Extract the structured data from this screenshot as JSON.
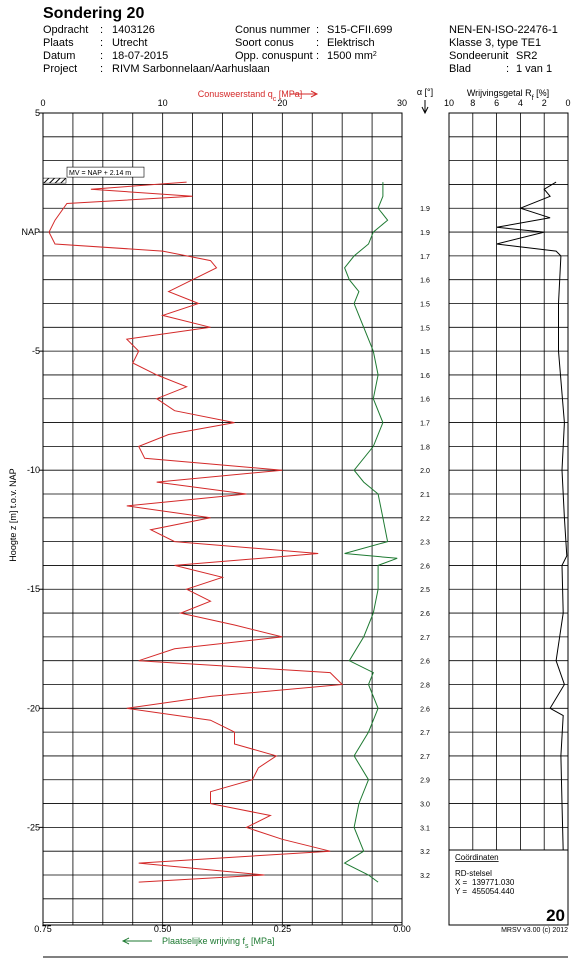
{
  "header": {
    "title": "Sondering 20",
    "separator": ":",
    "col1": [
      {
        "label": "Opdracht",
        "value": "1403126"
      },
      {
        "label": "Plaats",
        "value": "Utrecht"
      },
      {
        "label": "Datum",
        "value": "18-07-2015"
      },
      {
        "label": "Project",
        "value": "RIVM Sarbonnelaan/Aarhuslaan"
      }
    ],
    "col2": [
      {
        "label": "Conus nummer",
        "value": "S15-CFII.699"
      },
      {
        "label": "Soort conus",
        "value": "Elektrisch"
      },
      {
        "label": "Opp. conuspunt",
        "value": "1500 mm",
        "sup": "2"
      }
    ],
    "col3": [
      {
        "text": "NEN-EN-ISO-22476-1"
      },
      {
        "text": "Klasse 3, type TE1"
      },
      {
        "label": "Sondeerunit",
        "value": "SR2"
      },
      {
        "label": "Blad",
        "value": "1 van 1"
      }
    ]
  },
  "chart_data": {
    "type": "cpt",
    "ylabel": "Hoogte z [m] t.o.v. NAP",
    "ylim": [
      5,
      -29.1
    ],
    "yticks": [
      5,
      {
        "value": 0,
        "label": "NAP"
      },
      -5,
      -10,
      -15,
      -20,
      -25
    ],
    "ygrid": [
      5,
      4,
      3,
      2,
      1,
      0,
      -1,
      -2,
      -3,
      -4,
      -5,
      -6,
      -7,
      -8,
      -9,
      -10,
      -11,
      -12,
      -13,
      -14,
      -15,
      -16,
      -17,
      -18,
      -19,
      -20,
      -21,
      -22,
      -23,
      -24,
      -25,
      -26,
      -27,
      -28,
      -29
    ],
    "annotation": "MV = NAP + 2.14 m",
    "surface_level": 2.14,
    "qc": {
      "label": [
        "Conusweerstand q",
        "c",
        " [MPa]"
      ],
      "color": "#d42a2a",
      "xlim": [
        0,
        30
      ],
      "xticks": [
        0,
        10,
        20,
        30
      ],
      "xgrid": [
        0,
        2.5,
        5,
        7.5,
        10,
        12.5,
        15,
        17.5,
        20,
        22.5,
        25,
        27.5,
        30
      ],
      "depth": [
        2.1,
        1.8,
        1.5,
        1.2,
        0.5,
        0,
        -0.5,
        -0.8,
        -1.2,
        -1.5,
        -2,
        -2.5,
        -3,
        -3.5,
        -4,
        -4.5,
        -5,
        -5.5,
        -6,
        -6.5,
        -7,
        -7.5,
        -8,
        -8.5,
        -9,
        -9.5,
        -10,
        -10.5,
        -11,
        -11.5,
        -12,
        -12.5,
        -13,
        -13.5,
        -14,
        -14.5,
        -15,
        -15.5,
        -16,
        -16.5,
        -17,
        -17.5,
        -18,
        -18.5,
        -19,
        -19.5,
        -20,
        -20.5,
        -21,
        -21.5,
        -22,
        -22.5,
        -23,
        -23.5,
        -24,
        -24.5,
        -25,
        -25.5,
        -26,
        -26.5,
        -27,
        -27.3
      ],
      "values": [
        12,
        4,
        12.5,
        2,
        1,
        0.5,
        1,
        10,
        14,
        14.5,
        12.5,
        10.5,
        13,
        10,
        14,
        7,
        8,
        7.5,
        9.5,
        12,
        9.5,
        11,
        16,
        10.5,
        8,
        8.5,
        20,
        9.5,
        17,
        7,
        14,
        9,
        11,
        23,
        11,
        15,
        12,
        14,
        11.5,
        16,
        20,
        11,
        8,
        24,
        25,
        14,
        7,
        14,
        16,
        16,
        19.5,
        18,
        17.5,
        14,
        14,
        19,
        17,
        20,
        24,
        8,
        18.5,
        8
      ]
    },
    "fs": {
      "label": [
        "Plaatselijke wrijving f",
        "s",
        " [MPa]"
      ],
      "color": "#1e7a32",
      "xlim": [
        0.75,
        0
      ],
      "xticks": [
        {
          "value": 0.75,
          "label": "0.75"
        },
        {
          "value": 0.5,
          "label": "0.50"
        },
        {
          "value": 0.25,
          "label": "0.25"
        },
        {
          "value": 0,
          "label": "0.00"
        }
      ],
      "depth": [
        2.1,
        1.5,
        1,
        0.5,
        0,
        -0.5,
        -1,
        -1.5,
        -2,
        -2.5,
        -3,
        -3.5,
        -4,
        -4.5,
        -5,
        -6,
        -7,
        -8,
        -9,
        -10,
        -10.5,
        -11,
        -12,
        -13,
        -13.5,
        -13.7,
        -14,
        -15,
        -16,
        -17,
        -18,
        -18.5,
        -19,
        -20,
        -21,
        -22,
        -23,
        -24,
        -25,
        -26,
        -26.5,
        -27,
        -27.3
      ],
      "values": [
        0.04,
        0.04,
        0.05,
        0.03,
        0.06,
        0.07,
        0.1,
        0.12,
        0.11,
        0.09,
        0.1,
        0.09,
        0.08,
        0.07,
        0.06,
        0.05,
        0.06,
        0.04,
        0.06,
        0.1,
        0.08,
        0.05,
        0.04,
        0.03,
        0.12,
        0.01,
        0.05,
        0.05,
        0.06,
        0.08,
        0.11,
        0.06,
        0.07,
        0.05,
        0.07,
        0.1,
        0.07,
        0.09,
        0.1,
        0.08,
        0.12,
        0.07,
        0.05
      ]
    },
    "rf": {
      "label": [
        "Wrijvingsgetal R",
        "f",
        " [%]"
      ],
      "color": "#000000",
      "xlim": [
        10,
        0
      ],
      "xticks": [
        10,
        8,
        6,
        4,
        2,
        0
      ],
      "depth": [
        2.1,
        1.8,
        1.5,
        1,
        0.6,
        0.2,
        0,
        -0.5,
        -0.8,
        -1,
        -3,
        -5,
        -8,
        -10,
        -12,
        -13.6,
        -14,
        -16,
        -18,
        -19,
        -20,
        -20.3,
        -22,
        -24,
        -26,
        -26.6,
        -27.3
      ],
      "values": [
        1,
        2,
        1.5,
        4,
        1.5,
        6,
        2,
        6,
        1,
        0.6,
        0.8,
        0.8,
        0.3,
        0.5,
        0.3,
        0.1,
        0.5,
        0.4,
        1,
        0.3,
        1.5,
        0.4,
        0.6,
        0.5,
        0.4,
        1,
        0.6
      ]
    },
    "alpha": {
      "label": "α [°]",
      "depth": [
        1,
        0,
        -1,
        -2,
        -3,
        -4,
        -5,
        -6,
        -7,
        -8,
        -9,
        -10,
        -11,
        -12,
        -13,
        -14,
        -15,
        -16,
        -17,
        -18,
        -19,
        -20,
        -21,
        -22,
        -23,
        -24,
        -25,
        -26,
        -27
      ],
      "values": [
        1.9,
        1.9,
        1.7,
        1.6,
        1.5,
        1.5,
        1.5,
        1.6,
        1.6,
        1.7,
        1.8,
        2,
        2.1,
        2.2,
        2.3,
        2.6,
        2.5,
        2.6,
        2.7,
        2.6,
        2.8,
        2.6,
        2.7,
        2.7,
        2.9,
        3,
        3.1,
        3.2,
        3.2
      ],
      "value_labels": [
        "1.9",
        "1.9",
        "1.7",
        "1.6",
        "1.5",
        "1.5",
        "1.5",
        "1.6",
        "1.6",
        "1.7",
        "1.8",
        "2.0",
        "2.1",
        "2.2",
        "2.3",
        "2.6",
        "2.5",
        "2.6",
        "2.7",
        "2.6",
        "2.8",
        "2.6",
        "2.7",
        "2.7",
        "2.9",
        "3.0",
        "3.1",
        "3.2",
        "3.2"
      ]
    }
  },
  "footer": {
    "coords_title": "Coördinaten",
    "system": "RD-stelsel",
    "x_label": "X =",
    "x": "139771.030",
    "y_label": "Y =",
    "y": "455054.440",
    "sheet": "20",
    "software": "MRSV v3.00 (c) 2012"
  }
}
